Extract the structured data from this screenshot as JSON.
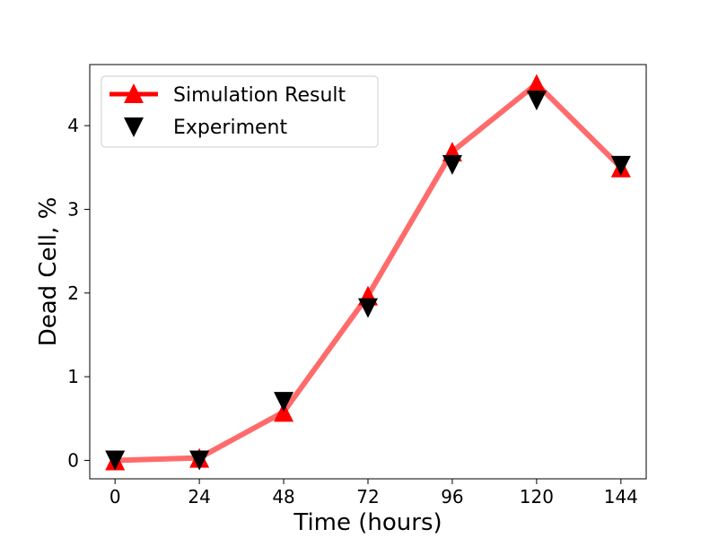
{
  "chart_data": {
    "type": "line",
    "xlabel": "Time (hours)",
    "ylabel": "Dead Cell, %",
    "x": [
      0,
      24,
      48,
      72,
      96,
      120,
      144
    ],
    "xticks": [
      "0",
      "24",
      "48",
      "72",
      "96",
      "120",
      "144"
    ],
    "yticks": [
      "0",
      "1",
      "2",
      "3",
      "4"
    ],
    "xlim": [
      -7.2,
      151.2
    ],
    "ylim": [
      -0.22,
      4.73
    ],
    "grid": false,
    "legend_position": "top-left",
    "series": [
      {
        "name": "Simulation Result",
        "values": [
          0.0,
          0.03,
          0.58,
          1.97,
          3.69,
          4.5,
          3.5
        ],
        "line_color": "#ff6b6b",
        "marker": "triangle-up",
        "marker_color": "#ff0000"
      },
      {
        "name": "Experiment",
        "values": [
          0.0,
          0.0,
          0.7,
          1.82,
          3.53,
          4.3,
          3.52
        ],
        "marker": "triangle-down",
        "marker_color": "#000000"
      }
    ]
  }
}
